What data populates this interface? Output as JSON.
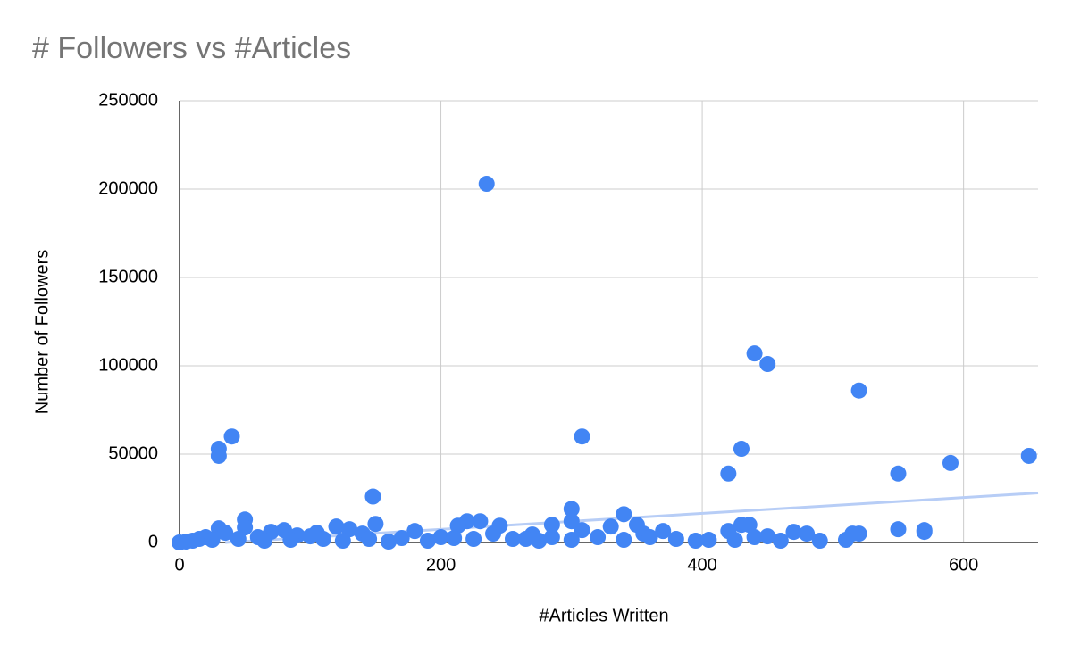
{
  "chart_data": {
    "type": "scatter",
    "title": "# Followers vs #Articles",
    "x_label": "#Articles Written",
    "y_label": "Number of Followers",
    "color": "#4285f4",
    "grid": true,
    "xlim": [
      0,
      657
    ],
    "ylim": [
      0,
      250000
    ],
    "xticks": [
      0,
      200,
      400,
      600
    ],
    "yticks": [
      0,
      50000,
      100000,
      150000,
      200000,
      250000
    ],
    "x": [
      235,
      440,
      450,
      520,
      30,
      30,
      40,
      308,
      430,
      420,
      550,
      590,
      650,
      148,
      300,
      340,
      50,
      300,
      220,
      230,
      350,
      285,
      150,
      213,
      245,
      430,
      436,
      120,
      30,
      80,
      130,
      308,
      330,
      370,
      420,
      470,
      480,
      515,
      520,
      550,
      570,
      570,
      180,
      105,
      70,
      35,
      50,
      240,
      270,
      355,
      360,
      440,
      450,
      320,
      255,
      265,
      395,
      405,
      490,
      510,
      340,
      300,
      170,
      200,
      210,
      190,
      160,
      10,
      15,
      20,
      5,
      0,
      25,
      45,
      60,
      90,
      100,
      140,
      145,
      110,
      125,
      85,
      65,
      275,
      285,
      225,
      380,
      425,
      460
    ],
    "values": [
      203000,
      107000,
      101000,
      86000,
      53000,
      49000,
      60000,
      60000,
      53000,
      39000,
      39000,
      45000,
      49000,
      26000,
      19000,
      16000,
      13000,
      12000,
      12000,
      12000,
      10000,
      10000,
      10500,
      9500,
      9500,
      10000,
      10000,
      9000,
      8000,
      7000,
      7500,
      7000,
      9000,
      6500,
      6500,
      6000,
      5000,
      5000,
      5000,
      7500,
      6000,
      7000,
      6500,
      5500,
      6000,
      5500,
      8500,
      5000,
      4500,
      5000,
      3000,
      3000,
      3500,
      3000,
      2000,
      2000,
      1000,
      1500,
      1000,
      1500,
      1500,
      1500,
      2500,
      3000,
      2500,
      1000,
      500,
      1000,
      2000,
      3000,
      500,
      0,
      1500,
      2000,
      3000,
      4000,
      3500,
      5000,
      2000,
      2000,
      1000,
      1500,
      1000,
      1000,
      3000,
      2000,
      2000,
      1500,
      1000
    ],
    "trendline": {
      "color": "#b7cdf6",
      "x": [
        35,
        657
      ],
      "values": [
        0,
        28000
      ]
    }
  }
}
